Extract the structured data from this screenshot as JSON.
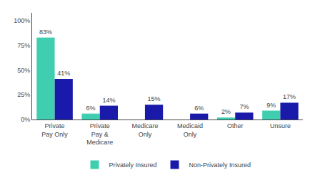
{
  "chart_data": {
    "type": "bar",
    "categories": [
      "Private\nPay Only",
      "Private\nPay &\nMedicare",
      "Medicare\nOnly",
      "Medicaid\nOnly",
      "Other",
      "Unsure"
    ],
    "series": [
      {
        "name": "Privately Insured",
        "color": "#3fcfb0",
        "values": [
          83,
          6,
          0,
          0,
          2,
          9
        ],
        "value_labels": [
          "83%",
          "6%",
          null,
          null,
          "2%",
          "9%"
        ]
      },
      {
        "name": "Non-Privately Insured",
        "color": "#1a1aaa",
        "values": [
          41,
          14,
          15,
          6,
          7,
          17
        ],
        "value_labels": [
          "41%",
          "14%",
          "15%",
          "6%",
          "7%",
          "17%"
        ]
      }
    ],
    "ylim": [
      0,
      108
    ],
    "yticks": [
      {
        "value": 0,
        "label": "0%"
      },
      {
        "value": 25,
        "label": "25%"
      },
      {
        "value": 50,
        "label": "50%"
      },
      {
        "value": 75,
        "label": "75%"
      },
      {
        "value": 100,
        "label": "100%"
      }
    ],
    "grid": false,
    "legend": "bottom",
    "data_labels": true
  }
}
